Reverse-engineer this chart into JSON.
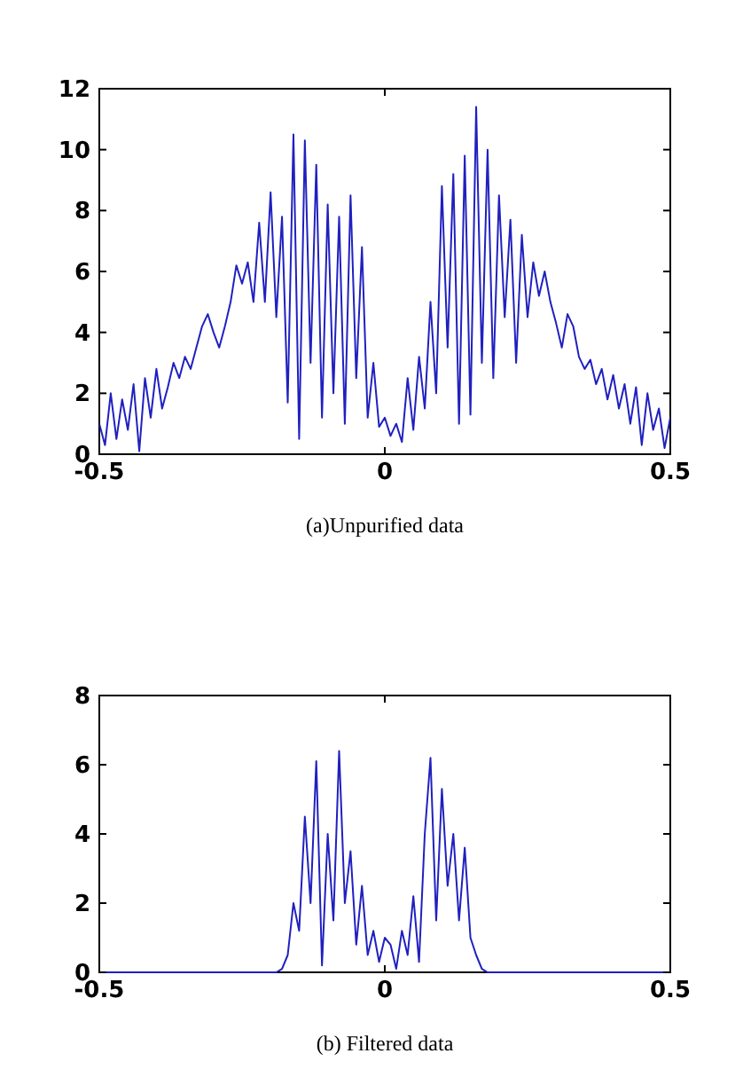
{
  "chart_data": [
    {
      "type": "line",
      "xlabel": "(a)Unpurified data",
      "xlim": [
        -0.5,
        0.5
      ],
      "xticks": [
        -0.5,
        0,
        0.5
      ],
      "ylim": [
        0,
        12
      ],
      "yticks": [
        0,
        2,
        4,
        6,
        8,
        10,
        12
      ],
      "grid": false,
      "x": [
        -0.5,
        -0.49,
        -0.48,
        -0.47,
        -0.46,
        -0.45,
        -0.44,
        -0.43,
        -0.42,
        -0.41,
        -0.4,
        -0.39,
        -0.38,
        -0.37,
        -0.36,
        -0.35,
        -0.34,
        -0.33,
        -0.32,
        -0.31,
        -0.3,
        -0.29,
        -0.28,
        -0.27,
        -0.26,
        -0.25,
        -0.24,
        -0.23,
        -0.22,
        -0.21,
        -0.2,
        -0.19,
        -0.18,
        -0.17,
        -0.16,
        -0.15,
        -0.14,
        -0.13,
        -0.12,
        -0.11,
        -0.1,
        -0.09,
        -0.08,
        -0.07,
        -0.06,
        -0.05,
        -0.04,
        -0.03,
        -0.02,
        -0.01,
        0,
        0.01,
        0.02,
        0.03,
        0.04,
        0.05,
        0.06,
        0.07,
        0.08,
        0.09,
        0.1,
        0.11,
        0.12,
        0.13,
        0.14,
        0.15,
        0.16,
        0.17,
        0.18,
        0.19,
        0.2,
        0.21,
        0.22,
        0.23,
        0.24,
        0.25,
        0.26,
        0.27,
        0.28,
        0.29,
        0.3,
        0.31,
        0.32,
        0.33,
        0.34,
        0.35,
        0.36,
        0.37,
        0.38,
        0.39,
        0.4,
        0.41,
        0.42,
        0.43,
        0.44,
        0.45,
        0.46,
        0.47,
        0.48,
        0.49,
        0.5
      ],
      "series": [
        {
          "color": "#2020c0",
          "values": [
            1.0,
            0.3,
            2.0,
            0.5,
            1.8,
            0.8,
            2.3,
            0.1,
            2.5,
            1.2,
            2.8,
            1.5,
            2.2,
            3.0,
            2.5,
            3.2,
            2.8,
            3.5,
            4.2,
            4.6,
            4.0,
            3.5,
            4.2,
            5.0,
            6.2,
            5.6,
            6.3,
            5.0,
            7.6,
            5.0,
            8.6,
            4.5,
            7.8,
            1.7,
            10.5,
            0.5,
            10.3,
            3.0,
            9.5,
            1.2,
            8.2,
            2.0,
            7.8,
            1.0,
            8.5,
            2.5,
            6.8,
            1.2,
            3.0,
            0.9,
            1.2,
            0.6,
            1.0,
            0.4,
            2.5,
            0.8,
            3.2,
            1.5,
            5.0,
            2.0,
            8.8,
            3.5,
            9.2,
            1.0,
            9.8,
            1.3,
            11.4,
            3.0,
            10.0,
            2.5,
            8.5,
            4.5,
            7.7,
            3.0,
            7.2,
            4.5,
            6.3,
            5.2,
            6.0,
            5.0,
            4.3,
            3.5,
            4.6,
            4.2,
            3.2,
            2.8,
            3.1,
            2.3,
            2.8,
            1.8,
            2.6,
            1.5,
            2.3,
            1.0,
            2.2,
            0.3,
            2.0,
            0.8,
            1.5,
            0.2,
            1.2
          ]
        }
      ]
    },
    {
      "type": "line",
      "xlabel": "(b) Filtered data",
      "xlim": [
        -0.5,
        0.5
      ],
      "xticks": [
        -0.5,
        0,
        0.5
      ],
      "ylim": [
        0,
        8
      ],
      "yticks": [
        0,
        2,
        4,
        6,
        8
      ],
      "grid": false,
      "x": [
        -0.5,
        -0.19,
        -0.18,
        -0.17,
        -0.16,
        -0.15,
        -0.14,
        -0.13,
        -0.12,
        -0.11,
        -0.1,
        -0.09,
        -0.08,
        -0.07,
        -0.06,
        -0.05,
        -0.04,
        -0.03,
        -0.02,
        -0.01,
        0,
        0.01,
        0.02,
        0.03,
        0.04,
        0.05,
        0.06,
        0.07,
        0.08,
        0.09,
        0.1,
        0.11,
        0.12,
        0.13,
        0.14,
        0.15,
        0.16,
        0.17,
        0.18,
        0.5
      ],
      "series": [
        {
          "color": "#2020c0",
          "values": [
            0,
            0,
            0.1,
            0.5,
            2.0,
            1.2,
            4.5,
            2.0,
            6.1,
            0.2,
            4.0,
            1.5,
            6.4,
            2.0,
            3.5,
            0.8,
            2.5,
            0.5,
            1.2,
            0.3,
            1.0,
            0.8,
            0.1,
            1.2,
            0.5,
            2.2,
            0.3,
            4.0,
            6.2,
            1.5,
            5.3,
            2.5,
            4.0,
            1.5,
            3.6,
            1.0,
            0.5,
            0.1,
            0,
            0
          ]
        }
      ]
    }
  ]
}
